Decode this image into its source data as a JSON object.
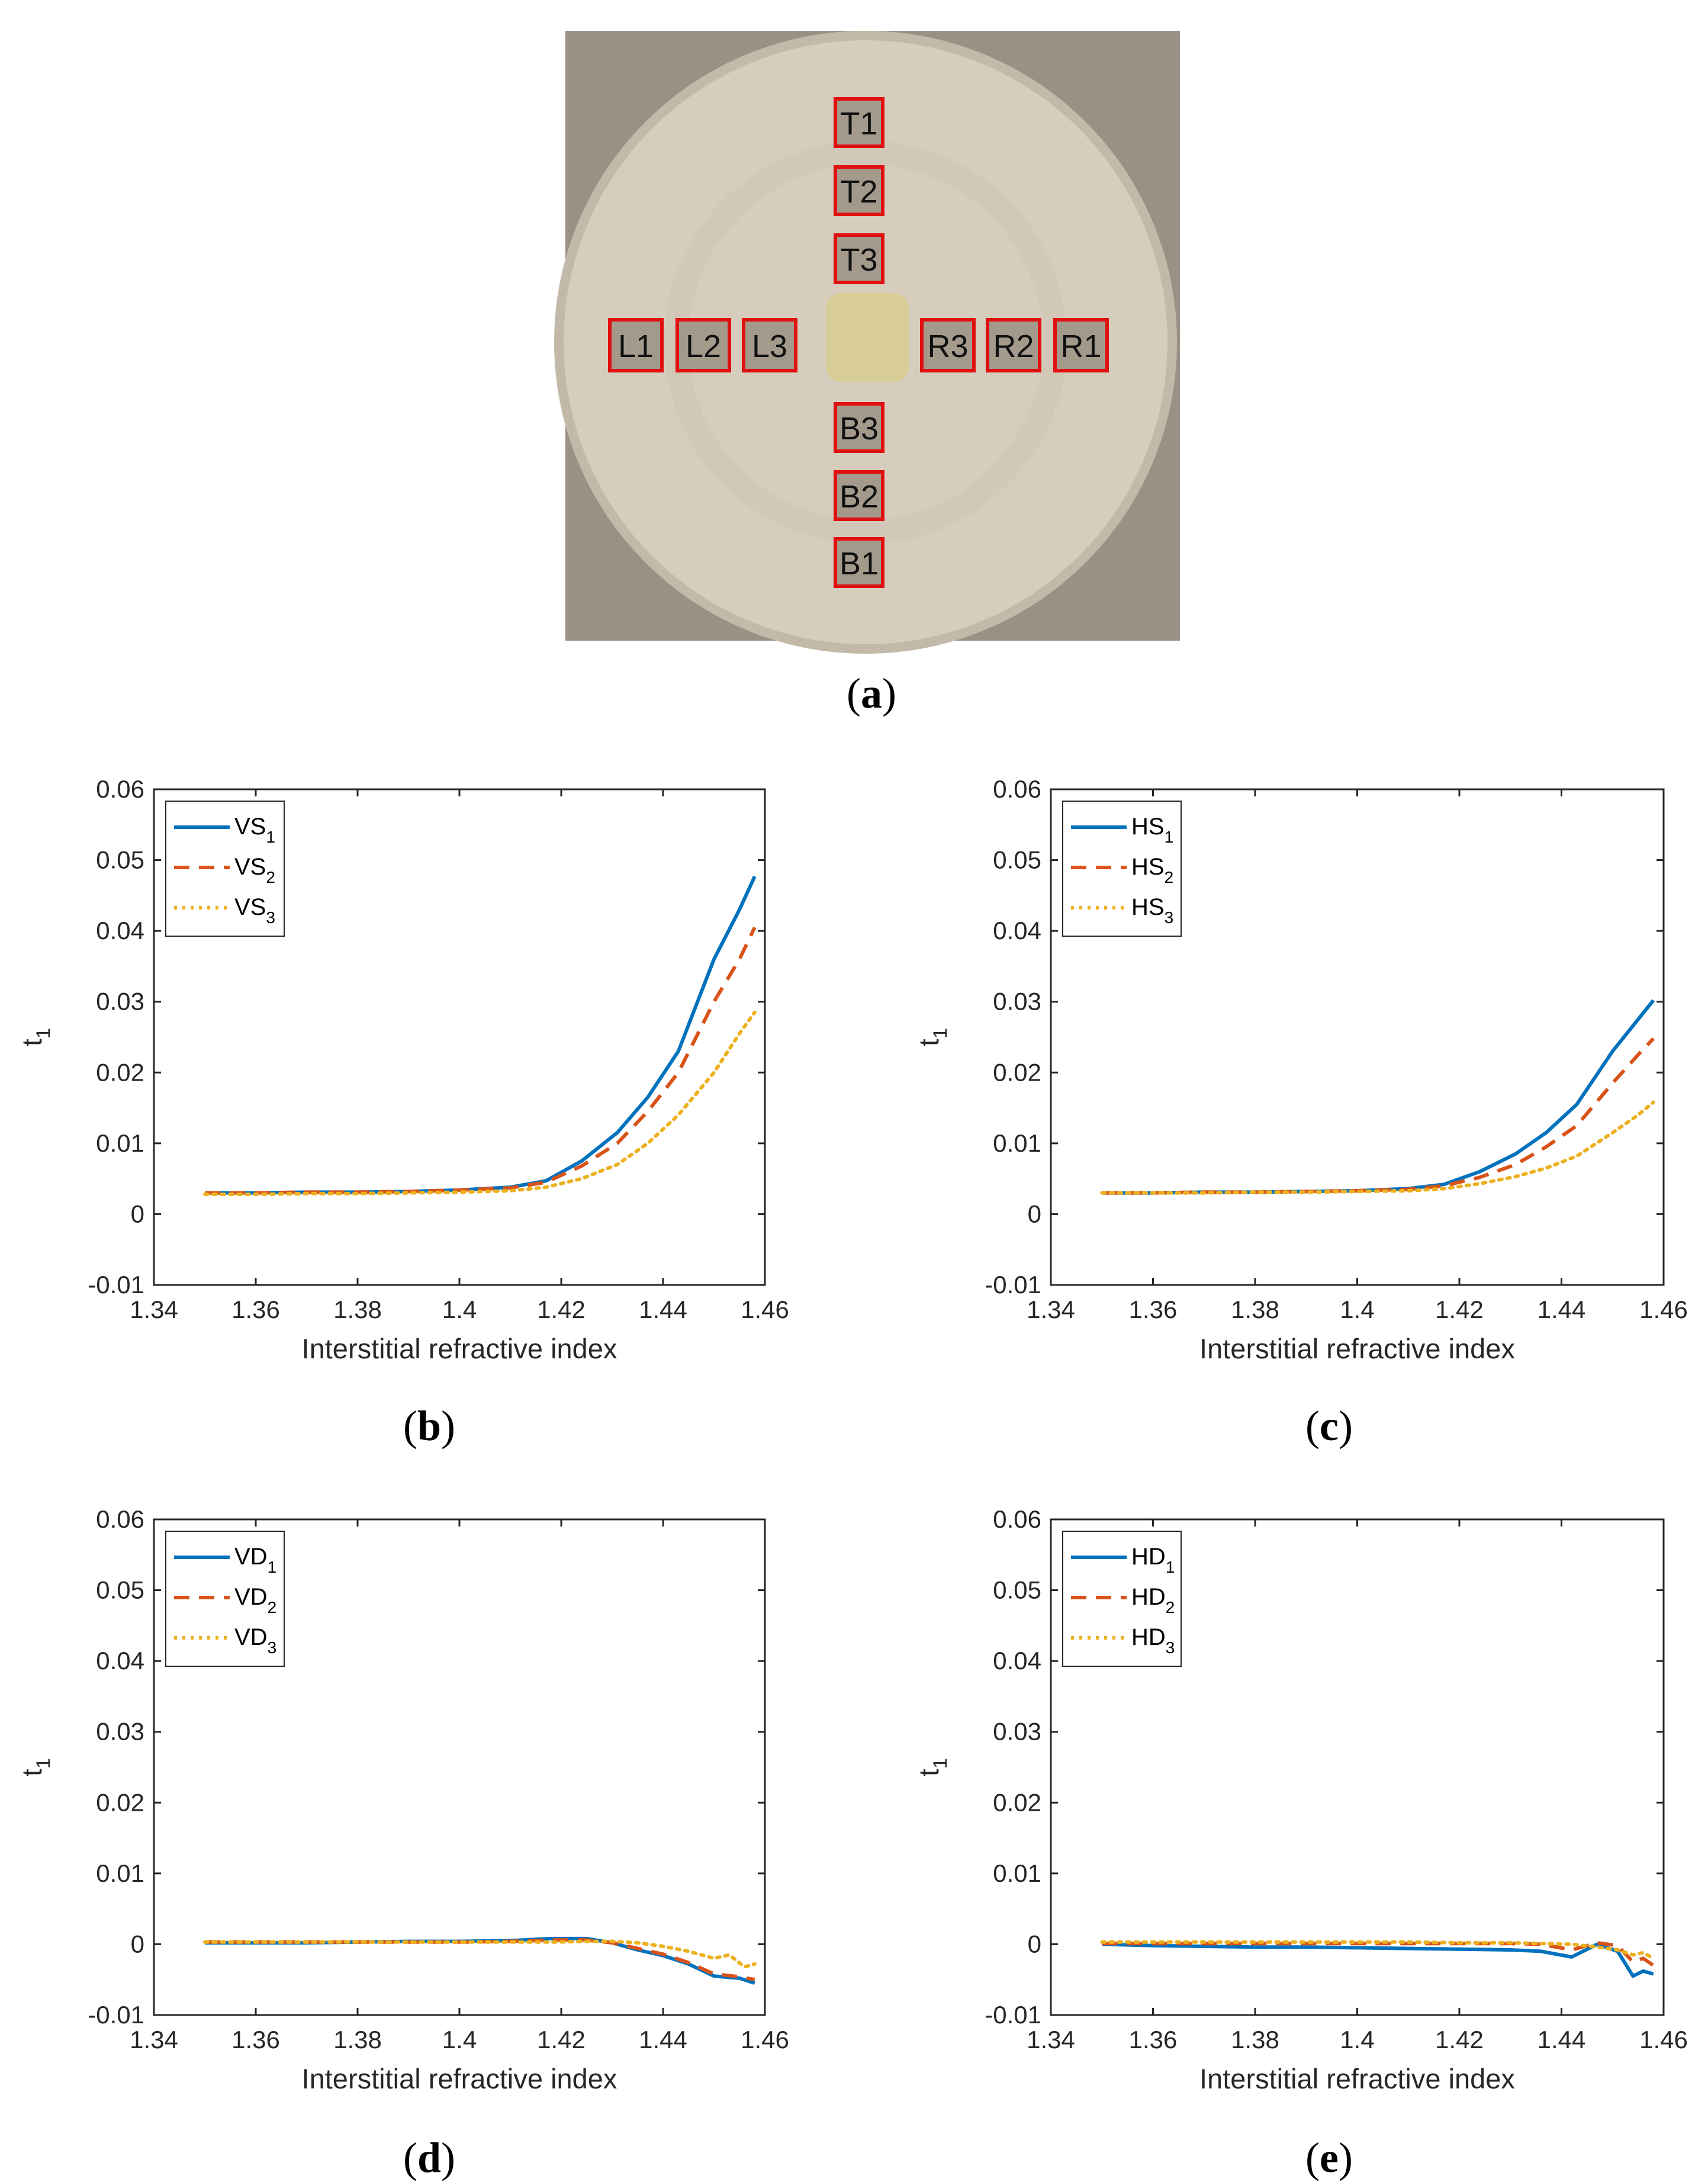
{
  "figure": {
    "panel_a": {
      "caption": "a",
      "markers": [
        "T1",
        "T2",
        "T3",
        "L1",
        "L2",
        "L3",
        "R3",
        "R2",
        "R1",
        "B3",
        "B2",
        "B1"
      ],
      "colors": {
        "background": "#9a9186",
        "disc": "#d6cdbd",
        "center": "#d8cd96",
        "marker_border": "#e01010"
      }
    }
  },
  "chart_data": [
    {
      "id": "b",
      "caption": "b",
      "type": "line",
      "xlabel": "Interstitial refractive index",
      "ylabel": "t",
      "ylabel_sub": "1",
      "xlim": [
        1.34,
        1.46
      ],
      "ylim": [
        -0.01,
        0.06
      ],
      "xticks": [
        "1.34",
        "1.36",
        "1.38",
        "1.4",
        "1.42",
        "1.44",
        "1.46"
      ],
      "yticks": [
        "-0.01",
        "0",
        "0.01",
        "0.02",
        "0.03",
        "0.04",
        "0.05",
        "0.06"
      ],
      "legend_position": "top-left",
      "series": [
        {
          "name": "VS",
          "sub": "1",
          "style": "solid",
          "color": "#0072BD",
          "x": [
            1.35,
            1.36,
            1.37,
            1.38,
            1.39,
            1.4,
            1.41,
            1.417,
            1.424,
            1.431,
            1.437,
            1.443,
            1.45,
            1.455,
            1.458
          ],
          "y": [
            0.003,
            0.003,
            0.0031,
            0.0031,
            0.0032,
            0.0034,
            0.0038,
            0.0047,
            0.0075,
            0.0115,
            0.0165,
            0.023,
            0.036,
            0.043,
            0.0477
          ]
        },
        {
          "name": "VS",
          "sub": "2",
          "style": "dashed",
          "color": "#D95319",
          "x": [
            1.35,
            1.36,
            1.37,
            1.38,
            1.39,
            1.4,
            1.41,
            1.417,
            1.424,
            1.431,
            1.437,
            1.443,
            1.45,
            1.455,
            1.458
          ],
          "y": [
            0.003,
            0.003,
            0.0031,
            0.0031,
            0.0032,
            0.0034,
            0.0037,
            0.0045,
            0.0068,
            0.01,
            0.0145,
            0.02,
            0.03,
            0.036,
            0.0405
          ]
        },
        {
          "name": "VS",
          "sub": "3",
          "style": "dotted",
          "color": "#EDB120",
          "x": [
            1.35,
            1.36,
            1.37,
            1.38,
            1.39,
            1.4,
            1.41,
            1.417,
            1.424,
            1.431,
            1.437,
            1.443,
            1.45,
            1.455,
            1.458
          ],
          "y": [
            0.0028,
            0.0028,
            0.0029,
            0.0029,
            0.003,
            0.0031,
            0.0033,
            0.0038,
            0.005,
            0.007,
            0.01,
            0.014,
            0.02,
            0.0255,
            0.0285
          ]
        }
      ]
    },
    {
      "id": "c",
      "caption": "c",
      "type": "line",
      "xlabel": "Interstitial refractive index",
      "ylabel": "t",
      "ylabel_sub": "1",
      "xlim": [
        1.34,
        1.46
      ],
      "ylim": [
        -0.01,
        0.06
      ],
      "xticks": [
        "1.34",
        "1.36",
        "1.38",
        "1.4",
        "1.42",
        "1.44",
        "1.46"
      ],
      "yticks": [
        "-0.01",
        "0",
        "0.01",
        "0.02",
        "0.03",
        "0.04",
        "0.05",
        "0.06"
      ],
      "legend_position": "top-left",
      "series": [
        {
          "name": "HS",
          "sub": "1",
          "style": "solid",
          "color": "#0072BD",
          "x": [
            1.35,
            1.36,
            1.37,
            1.38,
            1.39,
            1.4,
            1.41,
            1.417,
            1.424,
            1.431,
            1.437,
            1.443,
            1.45,
            1.455,
            1.458
          ],
          "y": [
            0.003,
            0.003,
            0.0031,
            0.0031,
            0.0032,
            0.0033,
            0.0036,
            0.0042,
            0.006,
            0.0085,
            0.0115,
            0.0155,
            0.023,
            0.0275,
            0.0302
          ]
        },
        {
          "name": "HS",
          "sub": "2",
          "style": "dashed",
          "color": "#D95319",
          "x": [
            1.35,
            1.36,
            1.37,
            1.38,
            1.39,
            1.4,
            1.41,
            1.417,
            1.424,
            1.431,
            1.437,
            1.443,
            1.45,
            1.455,
            1.458
          ],
          "y": [
            0.003,
            0.003,
            0.0031,
            0.0031,
            0.0032,
            0.0033,
            0.0035,
            0.004,
            0.0052,
            0.007,
            0.0095,
            0.0125,
            0.0185,
            0.0225,
            0.0248
          ]
        },
        {
          "name": "HS",
          "sub": "3",
          "style": "dotted",
          "color": "#EDB120",
          "x": [
            1.35,
            1.36,
            1.37,
            1.38,
            1.39,
            1.4,
            1.41,
            1.417,
            1.424,
            1.431,
            1.437,
            1.443,
            1.45,
            1.455,
            1.458
          ],
          "y": [
            0.003,
            0.003,
            0.003,
            0.0031,
            0.0031,
            0.0032,
            0.0033,
            0.0036,
            0.0043,
            0.0053,
            0.0065,
            0.0082,
            0.0115,
            0.014,
            0.0158
          ]
        }
      ]
    },
    {
      "id": "d",
      "caption": "d",
      "type": "line",
      "xlabel": "Interstitial refractive index",
      "ylabel": "t",
      "ylabel_sub": "1",
      "xlim": [
        1.34,
        1.46
      ],
      "ylim": [
        -0.01,
        0.06
      ],
      "xticks": [
        "1.34",
        "1.36",
        "1.38",
        "1.4",
        "1.42",
        "1.44",
        "1.46"
      ],
      "yticks": [
        "-0.01",
        "0",
        "0.01",
        "0.02",
        "0.03",
        "0.04",
        "0.05",
        "0.06"
      ],
      "legend_position": "top-left",
      "series": [
        {
          "name": "VD",
          "sub": "1",
          "style": "solid",
          "color": "#0072BD",
          "x": [
            1.35,
            1.36,
            1.37,
            1.38,
            1.39,
            1.4,
            1.41,
            1.418,
            1.425,
            1.43,
            1.435,
            1.44,
            1.445,
            1.45,
            1.455,
            1.458
          ],
          "y": [
            0.0002,
            0.0002,
            0.0002,
            0.0003,
            0.0004,
            0.0004,
            0.0005,
            0.0008,
            0.0008,
            0.0002,
            -0.0008,
            -0.0016,
            -0.0028,
            -0.0045,
            -0.0048,
            -0.0055
          ]
        },
        {
          "name": "VD",
          "sub": "2",
          "style": "dashed",
          "color": "#D95319",
          "x": [
            1.35,
            1.36,
            1.37,
            1.38,
            1.39,
            1.4,
            1.41,
            1.418,
            1.425,
            1.43,
            1.435,
            1.44,
            1.445,
            1.45,
            1.455,
            1.458
          ],
          "y": [
            0.0003,
            0.0003,
            0.0003,
            0.0003,
            0.0003,
            0.0003,
            0.0004,
            0.0006,
            0.0006,
            0.0002,
            -0.0006,
            -0.0014,
            -0.0026,
            -0.0042,
            -0.0046,
            -0.005
          ]
        },
        {
          "name": "VD",
          "sub": "3",
          "style": "dotted",
          "color": "#EDB120",
          "x": [
            1.35,
            1.36,
            1.37,
            1.38,
            1.39,
            1.4,
            1.41,
            1.418,
            1.425,
            1.43,
            1.435,
            1.44,
            1.445,
            1.45,
            1.453,
            1.456,
            1.458
          ],
          "y": [
            0.0003,
            0.0003,
            0.0003,
            0.0003,
            0.0003,
            0.0003,
            0.0003,
            0.0003,
            0.0004,
            0.0004,
            0.0002,
            -0.0003,
            -0.001,
            -0.002,
            -0.0015,
            -0.0032,
            -0.0028
          ]
        }
      ]
    },
    {
      "id": "e",
      "caption": "e",
      "type": "line",
      "xlabel": "Interstitial refractive index",
      "ylabel": "t",
      "ylabel_sub": "1",
      "xlim": [
        1.34,
        1.46
      ],
      "ylim": [
        -0.01,
        0.06
      ],
      "xticks": [
        "1.34",
        "1.36",
        "1.38",
        "1.4",
        "1.42",
        "1.44",
        "1.46"
      ],
      "yticks": [
        "-0.01",
        "0",
        "0.01",
        "0.02",
        "0.03",
        "0.04",
        "0.05",
        "0.06"
      ],
      "legend_position": "top-left",
      "series": [
        {
          "name": "HD",
          "sub": "1",
          "style": "solid",
          "color": "#0072BD",
          "x": [
            1.35,
            1.36,
            1.37,
            1.38,
            1.39,
            1.4,
            1.41,
            1.42,
            1.43,
            1.436,
            1.442,
            1.447,
            1.451,
            1.454,
            1.456,
            1.458
          ],
          "y": [
            0.0,
            -0.0002,
            -0.0003,
            -0.0004,
            -0.0004,
            -0.0005,
            -0.0006,
            -0.0007,
            -0.0008,
            -0.001,
            -0.0018,
            0.0,
            -0.001,
            -0.0045,
            -0.0038,
            -0.0042
          ]
        },
        {
          "name": "HD",
          "sub": "2",
          "style": "dashed",
          "color": "#D95319",
          "x": [
            1.35,
            1.36,
            1.37,
            1.38,
            1.39,
            1.4,
            1.41,
            1.42,
            1.43,
            1.436,
            1.442,
            1.447,
            1.451,
            1.454,
            1.456,
            1.458
          ],
          "y": [
            0.0001,
            0.0001,
            0.0001,
            0.0001,
            0.0001,
            0.0001,
            0.0001,
            0.0001,
            0.0001,
            0.0,
            -0.0008,
            0.0002,
            -0.0002,
            -0.0025,
            -0.002,
            -0.003
          ]
        },
        {
          "name": "HD",
          "sub": "3",
          "style": "dotted",
          "color": "#EDB120",
          "x": [
            1.35,
            1.36,
            1.37,
            1.38,
            1.39,
            1.4,
            1.41,
            1.42,
            1.43,
            1.436,
            1.442,
            1.447,
            1.451,
            1.454,
            1.456,
            1.458
          ],
          "y": [
            0.0003,
            0.0003,
            0.0003,
            0.0003,
            0.0003,
            0.0003,
            0.0003,
            0.0002,
            0.0002,
            0.0001,
            0.0,
            -0.0004,
            -0.0008,
            -0.0015,
            -0.0012,
            -0.002
          ]
        }
      ]
    }
  ]
}
